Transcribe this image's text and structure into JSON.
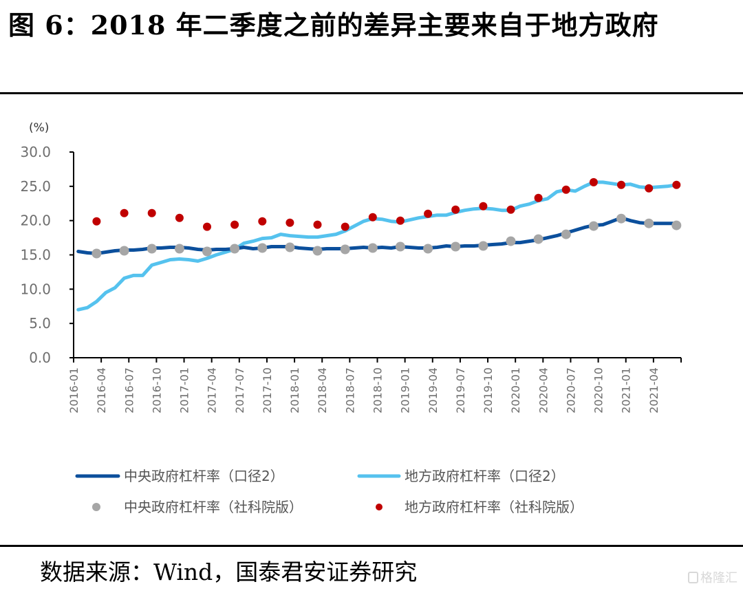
{
  "title": "图 6：2018 年二季度之前的差异主要来自于地方政府",
  "source": "数据来源：Wind，国泰君安证券研究",
  "watermark": "格隆汇",
  "colors": {
    "central_line": "#0b4f9c",
    "local_line": "#55c2ee",
    "central_dot": "#a6a6a6",
    "local_dot": "#c00000",
    "axis": "#000000"
  },
  "chart_data": {
    "type": "line",
    "title": "",
    "xlabel": "",
    "ylabel": "(%)",
    "ylim": [
      0,
      30
    ],
    "yticks": [
      "0.0",
      "5.0",
      "10.0",
      "15.0",
      "20.0",
      "25.0",
      "30.0"
    ],
    "ytick_values": [
      0,
      5,
      10,
      15,
      20,
      25,
      30
    ],
    "x_unit": "months since 2016-01",
    "xlim": [
      0,
      66
    ],
    "xticks": [
      "2016-01",
      "2016-04",
      "2016-07",
      "2016-10",
      "2017-01",
      "2017-04",
      "2017-07",
      "2017-10",
      "2018-01",
      "2018-04",
      "2018-07",
      "2018-10",
      "2019-01",
      "2019-04",
      "2019-07",
      "2019-10",
      "2020-01",
      "2020-04",
      "2020-07",
      "2020-10",
      "2021-01",
      "2021-04"
    ],
    "xtick_values": [
      0,
      3,
      6,
      9,
      12,
      15,
      18,
      21,
      24,
      27,
      30,
      33,
      36,
      39,
      42,
      45,
      48,
      51,
      54,
      57,
      60,
      63
    ],
    "grid": false,
    "legend_position": "bottom",
    "series": [
      {
        "name": "中央政府杠杆率（口径2）",
        "kind": "line",
        "x_start": 0.5,
        "x_step": 1,
        "values": [
          15.5,
          15.3,
          15.2,
          15.4,
          15.6,
          15.7,
          15.7,
          15.8,
          16.0,
          16.0,
          16.1,
          16.1,
          16.0,
          15.8,
          15.7,
          15.8,
          15.8,
          15.9,
          16.1,
          15.9,
          16.0,
          16.2,
          16.2,
          16.2,
          16.0,
          15.9,
          15.8,
          15.9,
          15.9,
          15.9,
          16.0,
          16.1,
          16.0,
          16.1,
          16.0,
          16.2,
          16.1,
          16.0,
          16.0,
          16.1,
          16.3,
          16.2,
          16.3,
          16.3,
          16.4,
          16.5,
          16.6,
          16.8,
          16.8,
          17.0,
          17.2,
          17.5,
          17.8,
          18.2,
          18.6,
          19.0,
          19.3,
          19.4,
          19.9,
          20.4,
          20.0,
          19.7,
          19.6,
          19.6,
          19.6,
          19.6
        ]
      },
      {
        "name": "地方政府杠杆率（口径2）",
        "kind": "line",
        "x_start": 0.5,
        "x_step": 1,
        "values": [
          7.0,
          7.3,
          8.2,
          9.5,
          10.2,
          11.6,
          12.0,
          12.0,
          13.5,
          13.9,
          14.3,
          14.4,
          14.3,
          14.1,
          14.5,
          15.0,
          15.4,
          15.8,
          16.7,
          17.0,
          17.4,
          17.5,
          18.0,
          17.8,
          17.7,
          17.6,
          17.6,
          17.8,
          18.0,
          18.5,
          19.2,
          19.9,
          20.3,
          20.2,
          19.9,
          19.8,
          20.1,
          20.4,
          20.6,
          20.8,
          20.8,
          21.2,
          21.5,
          21.7,
          21.8,
          21.7,
          21.5,
          21.5,
          22.1,
          22.4,
          22.9,
          23.2,
          24.2,
          24.5,
          24.3,
          25.0,
          25.6,
          25.6,
          25.4,
          25.2,
          25.3,
          24.9,
          24.8,
          24.9,
          25.0,
          25.2
        ]
      },
      {
        "name": "中央政府杠杆率（社科院版）",
        "kind": "scatter",
        "x_start": 2.5,
        "x_step": 3,
        "values": [
          15.2,
          15.6,
          15.9,
          15.9,
          15.5,
          15.9,
          16.0,
          16.1,
          15.6,
          15.8,
          16.0,
          16.2,
          15.9,
          16.2,
          16.3,
          17.0,
          17.3,
          18.0,
          19.2,
          20.3,
          19.6,
          19.3
        ]
      },
      {
        "name": "地方政府杠杆率（社科院版）",
        "kind": "scatter",
        "x_start": 2.5,
        "x_step": 3,
        "values": [
          19.9,
          21.1,
          21.1,
          20.4,
          19.1,
          19.4,
          19.9,
          19.7,
          19.4,
          19.1,
          20.5,
          20.0,
          21.0,
          21.6,
          22.1,
          21.6,
          23.3,
          24.5,
          25.6,
          25.2,
          24.7,
          25.2
        ]
      }
    ]
  }
}
